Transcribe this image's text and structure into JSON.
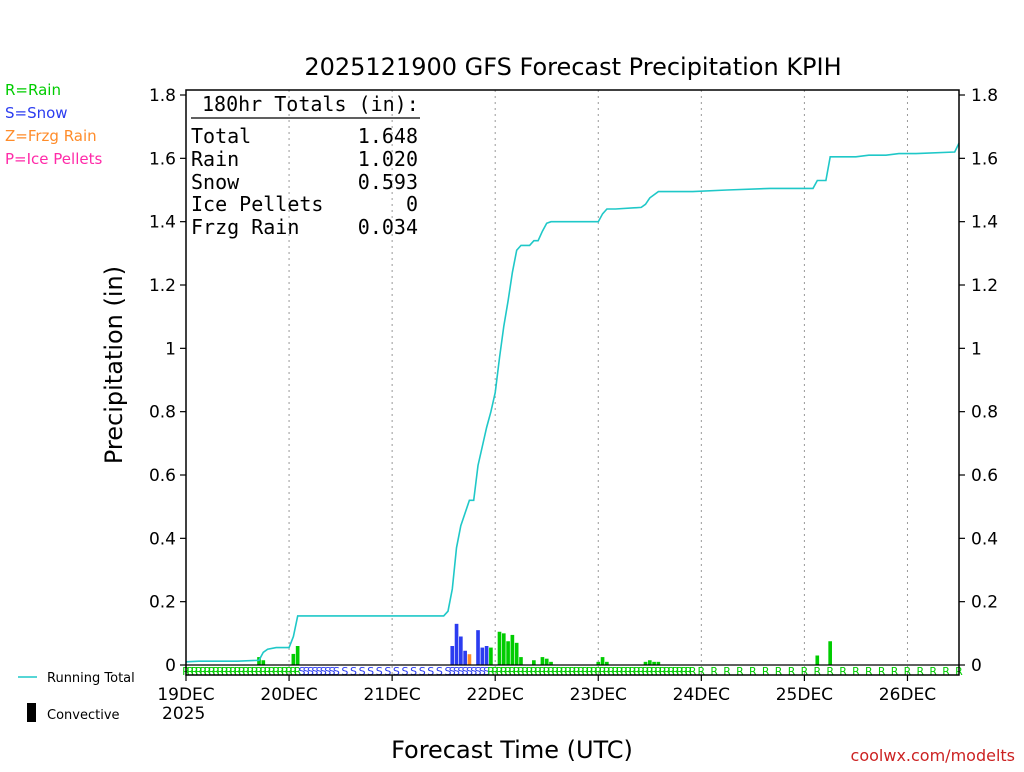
{
  "chart_data": {
    "type": "bar+line",
    "title": "2025121900 GFS Forecast Precipitation KPIH",
    "xlabel": "Forecast Time (UTC)",
    "ylabel": "Precipitation (in)",
    "ylim": [
      0,
      1.8
    ],
    "xlim_hours": [
      0,
      180
    ],
    "y_ticks": [
      {
        "value": 0,
        "label": "0"
      },
      {
        "value": 0.2,
        "label": "0.2"
      },
      {
        "value": 0.4,
        "label": "0.4"
      },
      {
        "value": 0.6,
        "label": "0.6"
      },
      {
        "value": 0.8,
        "label": "0.8"
      },
      {
        "value": 1.0,
        "label": "1"
      },
      {
        "value": 1.2,
        "label": "1.2"
      },
      {
        "value": 1.4,
        "label": "1.4"
      },
      {
        "value": 1.6,
        "label": "1.6"
      },
      {
        "value": 1.8,
        "label": "1.8"
      }
    ],
    "x_ticks": [
      {
        "hour": 0,
        "label": "19DEC"
      },
      {
        "hour": 24,
        "label": "20DEC"
      },
      {
        "hour": 48,
        "label": "21DEC"
      },
      {
        "hour": 72,
        "label": "22DEC"
      },
      {
        "hour": 96,
        "label": "23DEC"
      },
      {
        "hour": 120,
        "label": "24DEC"
      },
      {
        "hour": 144,
        "label": "25DEC"
      },
      {
        "hour": 168,
        "label": "26DEC"
      }
    ],
    "year_label": "2025",
    "type_colors": {
      "R": "#00cc00",
      "S": "#2b3cf0",
      "Z": "#ff8c2a",
      "P": "#ff2aa8"
    },
    "line_color": "#1fc8c8",
    "bars": [
      {
        "hour": 17,
        "value": 0.025,
        "type": "R"
      },
      {
        "hour": 18,
        "value": 0.015,
        "type": "R"
      },
      {
        "hour": 25,
        "value": 0.035,
        "type": "R"
      },
      {
        "hour": 26,
        "value": 0.06,
        "type": "R"
      },
      {
        "hour": 62,
        "value": 0.06,
        "type": "S"
      },
      {
        "hour": 63,
        "value": 0.13,
        "type": "S"
      },
      {
        "hour": 64,
        "value": 0.09,
        "type": "S"
      },
      {
        "hour": 65,
        "value": 0.045,
        "type": "S"
      },
      {
        "hour": 66,
        "value": 0.034,
        "type": "Z"
      },
      {
        "hour": 68,
        "value": 0.11,
        "type": "S"
      },
      {
        "hour": 69,
        "value": 0.055,
        "type": "S"
      },
      {
        "hour": 70,
        "value": 0.06,
        "type": "S"
      },
      {
        "hour": 71,
        "value": 0.055,
        "type": "R"
      },
      {
        "hour": 73,
        "value": 0.105,
        "type": "R"
      },
      {
        "hour": 74,
        "value": 0.1,
        "type": "R"
      },
      {
        "hour": 75,
        "value": 0.075,
        "type": "R"
      },
      {
        "hour": 76,
        "value": 0.095,
        "type": "R"
      },
      {
        "hour": 77,
        "value": 0.07,
        "type": "R"
      },
      {
        "hour": 78,
        "value": 0.025,
        "type": "R"
      },
      {
        "hour": 81,
        "value": 0.015,
        "type": "R"
      },
      {
        "hour": 83,
        "value": 0.025,
        "type": "R"
      },
      {
        "hour": 84,
        "value": 0.02,
        "type": "R"
      },
      {
        "hour": 85,
        "value": 0.01,
        "type": "R"
      },
      {
        "hour": 96,
        "value": 0.01,
        "type": "R"
      },
      {
        "hour": 97,
        "value": 0.025,
        "type": "R"
      },
      {
        "hour": 98,
        "value": 0.01,
        "type": "R"
      },
      {
        "hour": 107,
        "value": 0.01,
        "type": "R"
      },
      {
        "hour": 108,
        "value": 0.015,
        "type": "R"
      },
      {
        "hour": 109,
        "value": 0.01,
        "type": "R"
      },
      {
        "hour": 110,
        "value": 0.01,
        "type": "R"
      },
      {
        "hour": 147,
        "value": 0.03,
        "type": "R"
      },
      {
        "hour": 150,
        "value": 0.075,
        "type": "R"
      }
    ],
    "running_total": [
      [
        0,
        0.01
      ],
      [
        3,
        0.012
      ],
      [
        12,
        0.012
      ],
      [
        17,
        0.015
      ],
      [
        18,
        0.04
      ],
      [
        19,
        0.05
      ],
      [
        21,
        0.055
      ],
      [
        24,
        0.055
      ],
      [
        25,
        0.09
      ],
      [
        26,
        0.155
      ],
      [
        30,
        0.155
      ],
      [
        60,
        0.155
      ],
      [
        61,
        0.17
      ],
      [
        62,
        0.24
      ],
      [
        63,
        0.37
      ],
      [
        64,
        0.44
      ],
      [
        65,
        0.48
      ],
      [
        66,
        0.52
      ],
      [
        67,
        0.52
      ],
      [
        68,
        0.63
      ],
      [
        69,
        0.69
      ],
      [
        70,
        0.75
      ],
      [
        71,
        0.8
      ],
      [
        72,
        0.86
      ],
      [
        73,
        0.97
      ],
      [
        74,
        1.07
      ],
      [
        75,
        1.15
      ],
      [
        76,
        1.24
      ],
      [
        77,
        1.31
      ],
      [
        78,
        1.325
      ],
      [
        80,
        1.325
      ],
      [
        81,
        1.34
      ],
      [
        82,
        1.34
      ],
      [
        83,
        1.37
      ],
      [
        84,
        1.395
      ],
      [
        85,
        1.4
      ],
      [
        96,
        1.4
      ],
      [
        97,
        1.425
      ],
      [
        98,
        1.44
      ],
      [
        100,
        1.44
      ],
      [
        106,
        1.445
      ],
      [
        107,
        1.455
      ],
      [
        108,
        1.475
      ],
      [
        110,
        1.495
      ],
      [
        118,
        1.495
      ],
      [
        126,
        1.5
      ],
      [
        136,
        1.505
      ],
      [
        146,
        1.505
      ],
      [
        147,
        1.53
      ],
      [
        149,
        1.53
      ],
      [
        150,
        1.605
      ],
      [
        156,
        1.605
      ],
      [
        159,
        1.61
      ],
      [
        163,
        1.61
      ],
      [
        166,
        1.615
      ],
      [
        170,
        1.615
      ],
      [
        179,
        1.62
      ],
      [
        180,
        1.648
      ]
    ],
    "ptype_markers": [
      {
        "start": 0,
        "end": 26,
        "step": 1,
        "type": "R"
      },
      {
        "start": 27,
        "end": 34,
        "step": 1,
        "type": "S"
      },
      {
        "start": 35,
        "end": 60,
        "step": 2,
        "type": "S"
      },
      {
        "start": 61,
        "end": 70,
        "step": 1,
        "type": "S"
      },
      {
        "start": 71,
        "end": 118,
        "step": 1,
        "type": "R"
      },
      {
        "start": 120,
        "end": 180,
        "step": 3,
        "type": "R"
      }
    ],
    "totals_box": {
      "heading": "180hr Totals (in):",
      "rows": [
        {
          "label": "Total",
          "value": "1.648"
        },
        {
          "label": "Rain",
          "value": "1.020"
        },
        {
          "label": "Snow",
          "value": "0.593"
        },
        {
          "label": "Ice Pellets",
          "value": "0"
        },
        {
          "label": "Frzg Rain",
          "value": "0.034"
        }
      ]
    },
    "legend": [
      {
        "text": "R=Rain",
        "color": "#00cc00"
      },
      {
        "text": "S=Snow",
        "color": "#2b3cf0"
      },
      {
        "text": "Z=Frzg Rain",
        "color": "#ff8c2a"
      },
      {
        "text": "P=Ice Pellets",
        "color": "#ff2aa8"
      }
    ],
    "bottom_legend": {
      "running_total": "Running Total",
      "convective": "Convective"
    },
    "credit": "coolwx.com/modelts",
    "credit_color": "#cc2222"
  }
}
